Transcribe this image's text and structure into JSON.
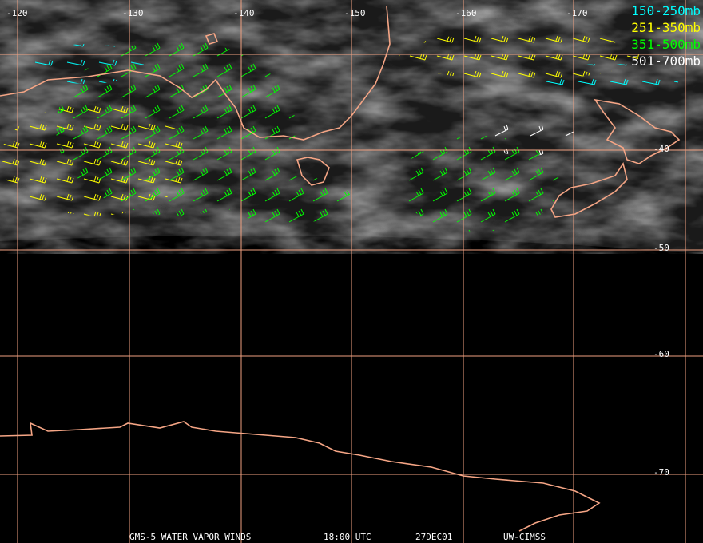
{
  "map": {
    "longitude_labels": [
      "-120",
      "-130",
      "-140",
      "-150",
      "-160",
      "-170"
    ],
    "latitude_labels": [
      "-40",
      "-50",
      "-60",
      "-70"
    ],
    "legend": [
      {
        "label": "150-250mb",
        "color": "#00ffff"
      },
      {
        "label": "251-350mb",
        "color": "#ffff00"
      },
      {
        "label": "351-500mb",
        "color": "#00ff00"
      },
      {
        "label": "501-700mb",
        "color": "#ffffff"
      }
    ],
    "footer": [
      "GMS-5 WATER VAPOR WINDS",
      "18:00 UTC",
      "27DEC01",
      "UW-CIMSS"
    ]
  }
}
